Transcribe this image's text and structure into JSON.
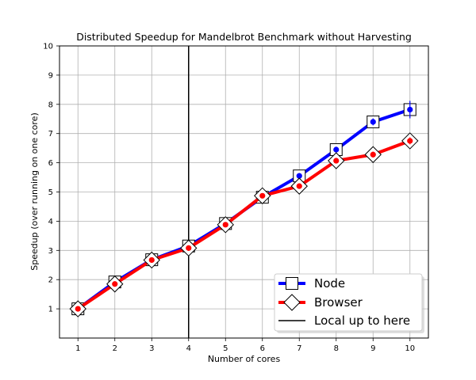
{
  "chart_data": {
    "type": "line",
    "title": "Distributed Speedup for Mandelbrot Benchmark without Harvesting",
    "xlabel": "Number of cores",
    "ylabel": "Speedup (over running on one core)",
    "xlim": [
      0.5,
      10.5
    ],
    "ylim": [
      0,
      10
    ],
    "xticks": [
      1,
      2,
      3,
      4,
      5,
      6,
      7,
      8,
      9,
      10
    ],
    "yticks": [
      1,
      2,
      3,
      4,
      5,
      6,
      7,
      8,
      9,
      10
    ],
    "grid": true,
    "legend_position": "bottom-right",
    "x": [
      1,
      2,
      3,
      4,
      5,
      6,
      7,
      8,
      9,
      10
    ],
    "series": [
      {
        "name": "Node",
        "color": "#0000ff",
        "marker": "square",
        "values": [
          1.0,
          1.92,
          2.68,
          3.15,
          3.92,
          4.82,
          5.55,
          6.45,
          7.4,
          7.82
        ],
        "error": [
          0.05,
          0.05,
          0.05,
          0.05,
          0.05,
          0.08,
          0.1,
          0.1,
          0.12,
          0.3
        ]
      },
      {
        "name": "Browser",
        "color": "#ff0000",
        "marker": "diamond",
        "values": [
          1.0,
          1.85,
          2.67,
          3.08,
          3.88,
          4.87,
          5.2,
          6.07,
          6.28,
          6.75
        ],
        "error": [
          0.05,
          0.05,
          0.05,
          0.05,
          0.05,
          0.08,
          0.08,
          0.08,
          0.1,
          0.12
        ]
      }
    ],
    "vline": {
      "x": 4,
      "name": "Local up to here",
      "color": "#000000"
    }
  }
}
